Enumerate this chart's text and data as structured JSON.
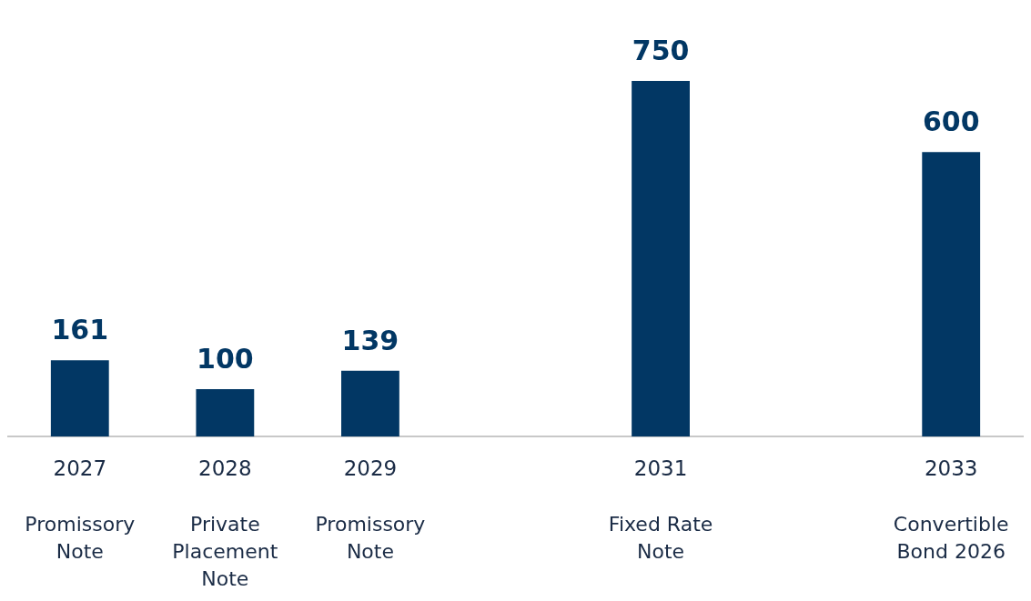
{
  "chart_data": {
    "type": "bar",
    "categories": [
      "2027",
      "2028",
      "2029",
      null,
      "2031",
      null,
      "2033"
    ],
    "values": [
      161,
      100,
      139,
      null,
      750,
      null,
      600
    ],
    "color": "#023764",
    "data_labels": true,
    "grid": false,
    "legend": false,
    "annotations": [
      "Promissory Note",
      "Private Placement Note",
      "Promissory Note",
      "Fixed Rate Note",
      "Convertible Bond 2026"
    ]
  }
}
